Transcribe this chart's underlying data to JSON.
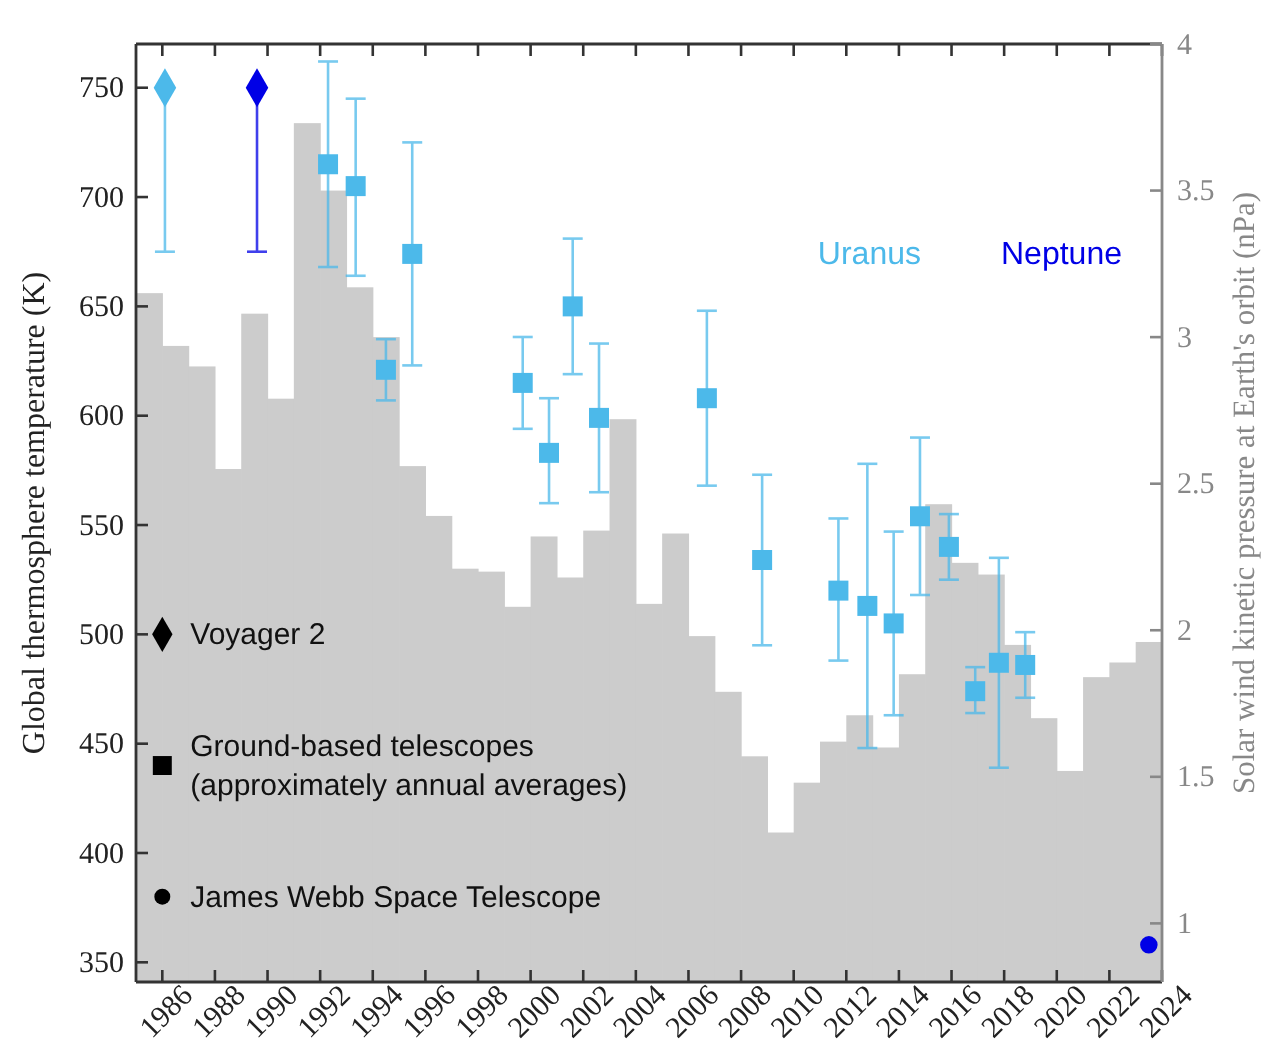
{
  "chart_data": {
    "type": "scatter",
    "ylabel": "Global thermosphere temperature (K)",
    "y2label": "Solar wind kinetic pressure at Earth's orbit (nPa)",
    "xlim": [
      1985,
      2024
    ],
    "xticks": [
      1986,
      1988,
      1990,
      1992,
      1994,
      1996,
      1998,
      2000,
      2002,
      2004,
      2006,
      2008,
      2010,
      2012,
      2014,
      2016,
      2018,
      2020,
      2022,
      2024
    ],
    "ylim": [
      341,
      770
    ],
    "yticks": [
      350,
      400,
      450,
      500,
      550,
      600,
      650,
      700,
      750
    ],
    "y2lim": [
      0.8,
      4
    ],
    "y2ticks": [
      1,
      1.5,
      2,
      2.5,
      3,
      3.5,
      4
    ],
    "legend": "top right",
    "grid": false,
    "annotations": [
      "Voyager 2",
      "Ground-based telescopes (approximately annual averages)",
      "James Webb Space Telescope"
    ],
    "series": [
      {
        "type": "bar",
        "axis": "y2",
        "color": "#cccccc",
        "x": [
          1985.5,
          1986.5,
          1987.5,
          1988.5,
          1989.5,
          1990.5,
          1991.5,
          1992.5,
          1993.5,
          1994.5,
          1995.5,
          1996.5,
          1997.5,
          1998.5,
          1999.5,
          2000.5,
          2001.5,
          2002.5,
          2003.5,
          2004.5,
          2005.5,
          2006.5,
          2007.5,
          2008.5,
          2009.5,
          2010.5,
          2011.5,
          2012.5,
          2013.5,
          2014.5,
          2015.5,
          2016.5,
          2017.5,
          2018.5,
          2019.5,
          2020.5,
          2021.5,
          2022.5,
          2023.5
        ],
        "values": [
          3.15,
          2.97,
          2.9,
          2.55,
          3.08,
          2.79,
          3.73,
          3.5,
          3.17,
          3.0,
          2.56,
          2.39,
          2.21,
          2.2,
          2.08,
          2.32,
          2.18,
          2.34,
          2.72,
          2.09,
          2.33,
          1.98,
          1.79,
          1.57,
          1.31,
          1.48,
          1.62,
          1.71,
          1.6,
          1.85,
          2.43,
          2.23,
          2.19,
          1.95,
          1.7,
          1.52,
          1.84,
          1.89,
          1.96
        ]
      },
      {
        "marker": "diamond",
        "color": "#4cb9ea",
        "x": [
          1986.1
        ],
        "values": [
          750
        ],
        "errors": [
          [
            675,
            750
          ]
        ]
      },
      {
        "name": "Neptune",
        "marker": "diamond",
        "color": "#0000e6",
        "x": [
          1989.6
        ],
        "values": [
          750
        ],
        "errors": [
          [
            675,
            750
          ]
        ]
      },
      {
        "name": "Uranus",
        "marker": "square",
        "color": "#4cb9ea",
        "x": [
          1992.3,
          1993.35,
          1994.5,
          1995.5,
          1999.7,
          2000.7,
          2001.6,
          2002.6,
          2006.7,
          2008.8,
          2011.7,
          2012.8,
          2013.8,
          2014.8,
          2015.9,
          2016.9,
          2017.8,
          2018.8
        ],
        "values": [
          715,
          705,
          621,
          674,
          615,
          583,
          650,
          599,
          608,
          534,
          520,
          513,
          505,
          554,
          540,
          474,
          487,
          486
        ],
        "errors": [
          [
            668,
            762
          ],
          [
            664,
            745
          ],
          [
            607,
            635
          ],
          [
            623,
            725
          ],
          [
            594,
            636
          ],
          [
            560,
            608
          ],
          [
            619,
            681
          ],
          [
            565,
            633
          ],
          [
            568,
            648
          ],
          [
            495,
            573
          ],
          [
            488,
            553
          ],
          [
            448,
            578
          ],
          [
            463,
            547
          ],
          [
            518,
            590
          ],
          [
            525,
            555
          ],
          [
            464,
            485
          ],
          [
            439,
            535
          ],
          [
            471,
            501
          ]
        ]
      },
      {
        "marker": "circle",
        "color": "#0000e6",
        "x": [
          2023.5
        ],
        "values": [
          358
        ]
      }
    ]
  }
}
